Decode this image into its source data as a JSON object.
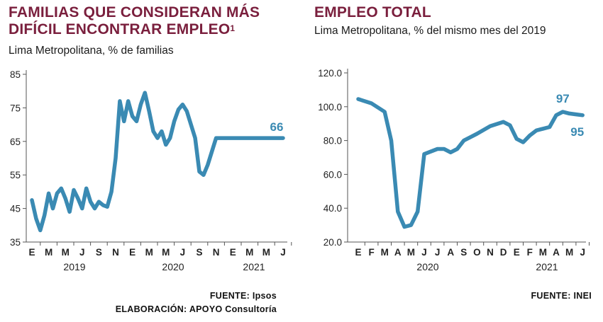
{
  "left": {
    "title_line1": "FAMILIAS QUE CONSIDERAN MÁS",
    "title_line2": "DIFÍCIL ENCONTRAR EMPLEO",
    "title_sup": "1",
    "subtitle": "Lima Metropolitana, % de familias",
    "source1": "FUENTE: Ipsos",
    "source2": "ELABORACIÓN: APOYO Consultoría"
  },
  "right": {
    "title": "EMPLEO TOTAL",
    "subtitle": "Lima Metropolitana, % del mismo mes del 2019",
    "source": "FUENTE: INEI"
  },
  "chart_data": [
    {
      "type": "line",
      "title": "FAMILIAS QUE CONSIDERAN MÁS DIFÍCIL ENCONTRAR EMPLEO",
      "ylim": [
        35,
        85
      ],
      "yticks": [
        "35",
        "45",
        "55",
        "65",
        "75",
        "85"
      ],
      "month_labels": [
        "E",
        "M",
        "M",
        "J",
        "S",
        "N",
        "E",
        "M",
        "M",
        "J",
        "S",
        "N",
        "E",
        "M",
        "M",
        "J"
      ],
      "year_labels": [
        "2019",
        "2020",
        "2021"
      ],
      "line_color": "#3a8ab3",
      "series": [
        {
          "x": [
            0,
            0.5,
            1,
            1.5,
            2,
            2.5,
            3,
            3.5,
            4,
            4.5,
            5,
            5.5,
            6,
            6.5,
            7,
            7.5,
            8,
            8.5,
            9,
            9.5,
            10,
            10.5,
            11,
            11.5,
            12,
            12.5,
            13,
            13.5,
            14,
            14.5,
            15,
            15.5,
            16,
            16.5,
            17,
            17.5,
            18,
            18.5,
            19,
            19.5,
            20,
            20.5,
            21,
            21.5,
            22,
            22.5,
            23,
            23.5,
            24,
            24.5,
            25,
            25.5,
            26,
            26.5,
            27,
            27.5,
            28,
            28.5,
            29,
            29.5,
            30
          ],
          "values": [
            47.5,
            42,
            38.5,
            43,
            49.5,
            45,
            49.5,
            51,
            48,
            44,
            50.5,
            48,
            45,
            51,
            47,
            45,
            47,
            46,
            45.5,
            50,
            60,
            77,
            71,
            77,
            72.5,
            71,
            76,
            79.5,
            74,
            68,
            66,
            68,
            64,
            66,
            71,
            74.5,
            76,
            74,
            70,
            66,
            56,
            55,
            58,
            62,
            66,
            66,
            66,
            66,
            66,
            66,
            66,
            66,
            66,
            66,
            66,
            66,
            66,
            66,
            66,
            66,
            66
          ]
        }
      ],
      "end_label": "66"
    },
    {
      "type": "line",
      "title": "EMPLEO TOTAL",
      "ylim": [
        20,
        120
      ],
      "yticks": [
        "20.0",
        "40.0",
        "60.0",
        "80.0",
        "100.0",
        "120.0"
      ],
      "month_labels": [
        "E",
        "F",
        "M",
        "A",
        "M",
        "J",
        "J",
        "A",
        "S",
        "O",
        "N",
        "D",
        "E",
        "F",
        "M",
        "A",
        "M",
        "J"
      ],
      "year_labels": [
        "2020",
        "2021"
      ],
      "line_color": "#3a8ab3",
      "series": [
        {
          "x": [
            0,
            1,
            2,
            2.5,
            3,
            3.5,
            4,
            4.5,
            5,
            6,
            6.5,
            7,
            7.5,
            8,
            8.5,
            9,
            10,
            11,
            11.5,
            12,
            12.5,
            13,
            13.5,
            14,
            14.5,
            15,
            15.5,
            16,
            16.5,
            17
          ],
          "values": [
            104.5,
            102,
            97,
            80,
            38,
            29,
            30,
            38,
            72,
            75,
            75,
            73,
            75,
            80,
            82,
            84,
            88.5,
            91,
            89,
            81,
            79,
            83,
            86,
            87,
            88,
            95,
            97,
            96,
            95.5,
            95
          ]
        }
      ],
      "peak_label": "97",
      "end_label": "95"
    }
  ]
}
